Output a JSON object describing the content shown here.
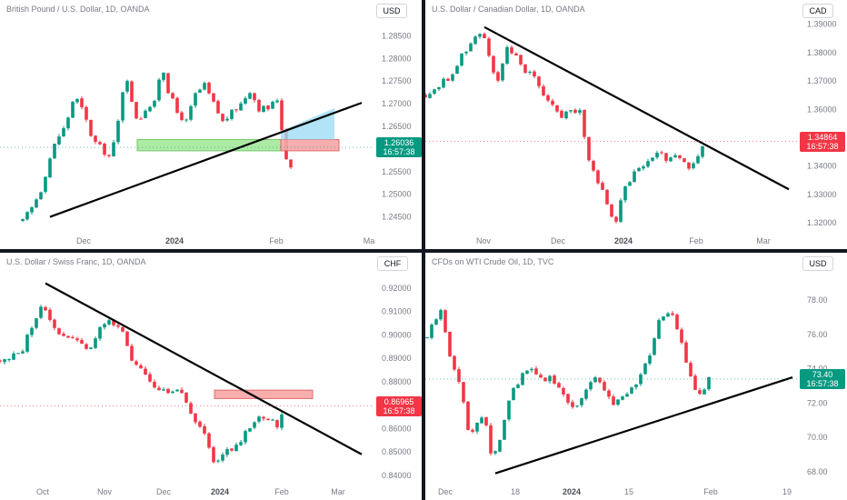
{
  "colors": {
    "up": "#089981",
    "down": "#f23645",
    "upFill": "#26a69a",
    "downFill": "#ef5350",
    "line": "#000000"
  },
  "chart_data": [
    {
      "type": "candlestick",
      "title": "British Pound / U.S. Dollar, 1D, OANDA",
      "currency": "USD",
      "last_price": "1.26036",
      "countdown": "16:57:38",
      "label_color": "#089981",
      "yticks": [
        "1.28500",
        "1.28000",
        "1.27500",
        "1.27000",
        "1.26500",
        "1.26000",
        "1.25500",
        "1.25000",
        "1.24500"
      ],
      "xticks": [
        {
          "t": "Dec",
          "bold": false
        },
        {
          "t": "2024",
          "bold": true
        },
        {
          "t": "Feb",
          "bold": false
        },
        {
          "t": "Ma",
          "bold": false
        }
      ],
      "ylim": [
        1.2415,
        1.2885
      ],
      "annotations": [
        "trendline",
        "support zone",
        "resistance zone",
        "projection zone"
      ]
    },
    {
      "type": "candlestick",
      "title": "U.S. Dollar / Canadian Dollar, 1D, OANDA",
      "currency": "CAD",
      "last_price": "1.34864",
      "countdown": "16:57:38",
      "label_color": "#f23645",
      "yticks": [
        "1.39000",
        "1.38000",
        "1.37000",
        "1.36000",
        "1.35000",
        "1.34000",
        "1.33000",
        "1.32000"
      ],
      "xticks": [
        {
          "t": "Nov",
          "bold": false
        },
        {
          "t": "Dec",
          "bold": false
        },
        {
          "t": "2024",
          "bold": true
        },
        {
          "t": "Feb",
          "bold": false
        },
        {
          "t": "Mar",
          "bold": false
        }
      ],
      "ylim": [
        1.3165,
        1.3915
      ],
      "annotations": [
        "trendline"
      ]
    },
    {
      "type": "candlestick",
      "title": "U.S. Dollar / Swiss Franc, 1D, OANDA",
      "currency": "CHF",
      "last_price": "0.86965",
      "countdown": "16:57:38",
      "label_color": "#f23645",
      "yticks": [
        "0.92000",
        "0.91000",
        "0.90000",
        "0.89000",
        "0.88000",
        "0.87000",
        "0.86000",
        "0.85000",
        "0.84000"
      ],
      "xticks": [
        {
          "t": "Oct",
          "bold": false
        },
        {
          "t": "Nov",
          "bold": false
        },
        {
          "t": "Dec",
          "bold": false
        },
        {
          "t": "2024",
          "bold": true
        },
        {
          "t": "Feb",
          "bold": false
        },
        {
          "t": "Mar",
          "bold": false
        }
      ],
      "ylim": [
        0.8365,
        0.9265
      ],
      "annotations": [
        "trendline",
        "resistance zone"
      ]
    },
    {
      "type": "candlestick",
      "title": "CFDs on WTI Crude Oil, 1D, TVC",
      "currency": "USD",
      "last_price": "73.40",
      "countdown": "16:57:38",
      "label_color": "#089981",
      "yticks": [
        "78.00",
        "76.00",
        "74.00",
        "72.00",
        "70.00",
        "68.00"
      ],
      "xticks": [
        {
          "t": "Dec",
          "bold": false
        },
        {
          "t": "18",
          "bold": false
        },
        {
          "t": "2024",
          "bold": true
        },
        {
          "t": "15",
          "bold": false
        },
        {
          "t": "Feb",
          "bold": false
        },
        {
          "t": "19",
          "bold": false
        }
      ],
      "ylim": [
        67.3,
        79.6
      ],
      "annotations": [
        "trendline"
      ]
    }
  ]
}
